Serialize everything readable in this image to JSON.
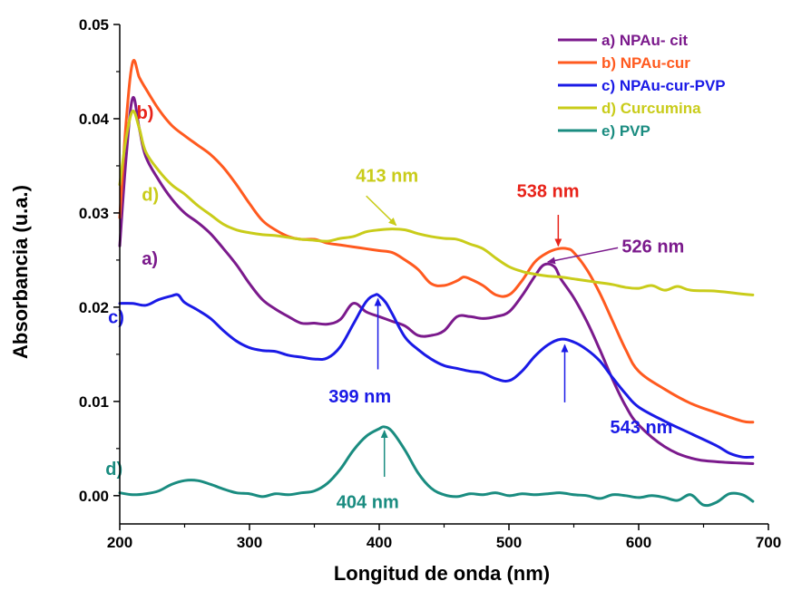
{
  "chart_data": {
    "type": "line",
    "title": "",
    "xlabel": "Longitud de onda (nm)",
    "ylabel": "Absorbancia (u.a.)",
    "xlim": [
      200,
      700
    ],
    "ylim": [
      -0.003,
      0.05
    ],
    "xticks": [
      200,
      300,
      400,
      500,
      600,
      700
    ],
    "xtick_labels": [
      "200",
      "300",
      "400",
      "500",
      "600",
      "700"
    ],
    "yticks": [
      0.0,
      0.01,
      0.02,
      0.03,
      0.04,
      0.05
    ],
    "ytick_labels": [
      "0.00",
      "0.01",
      "0.02",
      "0.03",
      "0.04",
      "0.05"
    ],
    "grid": false,
    "legend_position": "top-right",
    "series": [
      {
        "name": "a) NPAu- cit",
        "color": "#7B1A8C",
        "x": [
          200,
          205,
          210,
          215,
          220,
          230,
          240,
          250,
          260,
          270,
          280,
          290,
          300,
          310,
          320,
          330,
          340,
          350,
          360,
          370,
          380,
          390,
          400,
          410,
          420,
          430,
          440,
          450,
          460,
          470,
          480,
          490,
          500,
          510,
          520,
          527,
          535,
          540,
          550,
          560,
          570,
          580,
          590,
          600,
          620,
          640,
          660,
          688
        ],
        "y": [
          0.0265,
          0.036,
          0.0422,
          0.039,
          0.036,
          0.0335,
          0.0315,
          0.03,
          0.029,
          0.0278,
          0.0262,
          0.0245,
          0.0225,
          0.0208,
          0.0198,
          0.019,
          0.0183,
          0.0183,
          0.0182,
          0.0187,
          0.0204,
          0.0195,
          0.019,
          0.0185,
          0.018,
          0.017,
          0.017,
          0.0175,
          0.019,
          0.019,
          0.0188,
          0.019,
          0.0195,
          0.0212,
          0.0233,
          0.0245,
          0.0243,
          0.023,
          0.021,
          0.0185,
          0.0155,
          0.0123,
          0.0095,
          0.0075,
          0.0052,
          0.004,
          0.0036,
          0.0034
        ]
      },
      {
        "name": "b) NPAu-cur",
        "color": "#FF5A1F",
        "x": [
          200,
          205,
          210,
          215,
          220,
          230,
          240,
          250,
          260,
          270,
          280,
          290,
          300,
          310,
          320,
          330,
          340,
          350,
          360,
          370,
          380,
          390,
          400,
          410,
          420,
          430,
          440,
          450,
          460,
          465,
          470,
          480,
          490,
          500,
          510,
          520,
          530,
          538,
          545,
          550,
          560,
          570,
          580,
          590,
          600,
          620,
          640,
          660,
          680,
          688
        ],
        "y": [
          0.0295,
          0.0398,
          0.046,
          0.0444,
          0.0432,
          0.041,
          0.0393,
          0.0382,
          0.0372,
          0.0362,
          0.0348,
          0.033,
          0.031,
          0.0292,
          0.0282,
          0.0275,
          0.0272,
          0.0272,
          0.0268,
          0.0266,
          0.0264,
          0.0262,
          0.026,
          0.0258,
          0.025,
          0.024,
          0.0225,
          0.0223,
          0.0228,
          0.0232,
          0.023,
          0.0223,
          0.0213,
          0.0213,
          0.0228,
          0.0248,
          0.0258,
          0.0262,
          0.0262,
          0.0258,
          0.024,
          0.0215,
          0.0185,
          0.0155,
          0.0132,
          0.0113,
          0.0098,
          0.0088,
          0.0079,
          0.0078
        ]
      },
      {
        "name": "c) NPAu-cur-PVP",
        "color": "#1A1AE6",
        "x": [
          200,
          210,
          220,
          230,
          240,
          245,
          250,
          260,
          270,
          280,
          290,
          300,
          310,
          320,
          330,
          340,
          350,
          360,
          370,
          380,
          390,
          397,
          400,
          405,
          410,
          420,
          430,
          440,
          450,
          460,
          470,
          480,
          490,
          500,
          510,
          520,
          530,
          540,
          550,
          560,
          570,
          580,
          590,
          600,
          620,
          640,
          660,
          670,
          680,
          688
        ],
        "y": [
          0.0204,
          0.0204,
          0.0202,
          0.0208,
          0.0212,
          0.0213,
          0.0205,
          0.0197,
          0.0188,
          0.0175,
          0.0164,
          0.0157,
          0.0154,
          0.0153,
          0.0149,
          0.0147,
          0.0145,
          0.0146,
          0.0158,
          0.0182,
          0.0206,
          0.0213,
          0.0212,
          0.0205,
          0.0193,
          0.0168,
          0.0155,
          0.0145,
          0.0138,
          0.0135,
          0.0132,
          0.013,
          0.0124,
          0.0122,
          0.0132,
          0.0148,
          0.016,
          0.0166,
          0.0163,
          0.0155,
          0.0143,
          0.0125,
          0.0108,
          0.0094,
          0.0079,
          0.0066,
          0.0053,
          0.0045,
          0.0041,
          0.0041
        ]
      },
      {
        "name": "d) Curcumina",
        "color": "#C9CC1A",
        "x": [
          200,
          205,
          210,
          215,
          220,
          230,
          240,
          250,
          260,
          270,
          280,
          290,
          300,
          310,
          320,
          330,
          340,
          350,
          360,
          370,
          380,
          390,
          400,
          410,
          420,
          430,
          440,
          450,
          460,
          470,
          480,
          490,
          500,
          510,
          520,
          530,
          540,
          550,
          560,
          570,
          580,
          590,
          600,
          610,
          620,
          630,
          640,
          660,
          680,
          688
        ],
        "y": [
          0.033,
          0.038,
          0.0408,
          0.039,
          0.0365,
          0.0345,
          0.033,
          0.032,
          0.0308,
          0.0298,
          0.0288,
          0.0282,
          0.0279,
          0.0277,
          0.0276,
          0.0274,
          0.0272,
          0.0271,
          0.027,
          0.0273,
          0.0275,
          0.028,
          0.0282,
          0.0283,
          0.0282,
          0.0278,
          0.0275,
          0.0273,
          0.0272,
          0.0267,
          0.0262,
          0.0252,
          0.0243,
          0.0238,
          0.0235,
          0.0233,
          0.0232,
          0.023,
          0.0228,
          0.0226,
          0.0224,
          0.0221,
          0.022,
          0.0223,
          0.0218,
          0.0222,
          0.0218,
          0.0217,
          0.0214,
          0.0213
        ]
      },
      {
        "name": "e) PVP",
        "color": "#1A8C80",
        "x": [
          200,
          210,
          220,
          230,
          240,
          250,
          260,
          270,
          280,
          290,
          300,
          310,
          320,
          330,
          340,
          350,
          360,
          370,
          380,
          390,
          400,
          404,
          410,
          420,
          430,
          440,
          450,
          460,
          470,
          480,
          490,
          500,
          510,
          520,
          530,
          540,
          550,
          560,
          570,
          580,
          590,
          600,
          610,
          620,
          630,
          640,
          650,
          660,
          670,
          680,
          688
        ],
        "y": [
          0.0003,
          0.0001,
          0.0002,
          0.0005,
          0.0012,
          0.0016,
          0.0016,
          0.0012,
          0.0007,
          0.0003,
          0.0002,
          -0.0001,
          0.0002,
          0.0001,
          0.0003,
          0.0005,
          0.0013,
          0.0028,
          0.0048,
          0.0063,
          0.0071,
          0.0073,
          0.0068,
          0.0048,
          0.0024,
          0.0008,
          0.0001,
          -0.0001,
          0.0002,
          0.0001,
          0.0003,
          0.0,
          0.0002,
          0.0001,
          0.0002,
          0.0003,
          0.0001,
          0.0,
          -0.0003,
          0.0001,
          0.0,
          -0.0002,
          0.0,
          -0.0002,
          -0.0005,
          0.0001,
          -0.001,
          -0.0007,
          0.0002,
          0.0001,
          -0.0006
        ]
      }
    ],
    "annotations": [
      {
        "text": "b)",
        "color": "#E8231A",
        "x": 213,
        "y": 0.04
      },
      {
        "text": "d)",
        "color": "#C9CC1A",
        "x": 217,
        "y": 0.0313
      },
      {
        "text": "a)",
        "color": "#7B1A8C",
        "x": 217,
        "y": 0.0245
      },
      {
        "text": "c)",
        "color": "#1A1AE6",
        "x": 191,
        "y": 0.0183
      },
      {
        "text": "d)",
        "color": "#1A8C80",
        "x": 189,
        "y": 0.0022
      },
      {
        "text": "413 nm",
        "color": "#C9CC1A",
        "x": 382,
        "y": 0.0333
      },
      {
        "text": "538 nm",
        "color": "#E8231A",
        "x": 506,
        "y": 0.0317
      },
      {
        "text": "526 nm",
        "color": "#7B1A8C",
        "x": 587,
        "y": 0.0258
      },
      {
        "text": "399 nm",
        "color": "#1A1AE6",
        "x": 361,
        "y": 0.0099
      },
      {
        "text": "543 nm",
        "color": "#1A1AE6",
        "x": 578,
        "y": 0.0066
      },
      {
        "text": "404 nm",
        "color": "#1A8C80",
        "x": 367,
        "y": -0.0013
      }
    ],
    "arrows": [
      {
        "color": "#C9CC1A",
        "from": [
          390,
          0.0318
        ],
        "to": [
          413,
          0.0287
        ]
      },
      {
        "color": "#E8231A",
        "from": [
          538,
          0.0298
        ],
        "to": [
          538,
          0.0265
        ]
      },
      {
        "color": "#7B1A8C",
        "from": [
          584,
          0.0263
        ],
        "to": [
          530,
          0.0248
        ]
      },
      {
        "color": "#1A1AE6",
        "from": [
          399,
          0.0134
        ],
        "to": [
          399,
          0.0209
        ]
      },
      {
        "color": "#1A1AE6",
        "from": [
          543,
          0.0099
        ],
        "to": [
          543,
          0.016
        ]
      },
      {
        "color": "#1A8C80",
        "from": [
          404,
          0.002
        ],
        "to": [
          404,
          0.0069
        ]
      }
    ]
  }
}
